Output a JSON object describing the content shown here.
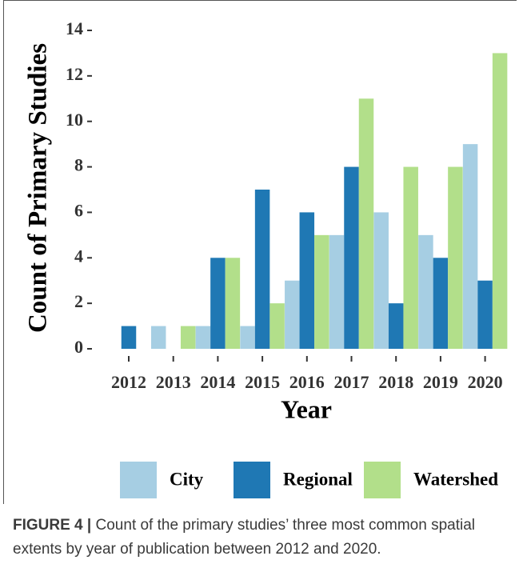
{
  "chart_data": {
    "type": "bar",
    "categories": [
      "2012",
      "2013",
      "2014",
      "2015",
      "2016",
      "2017",
      "2018",
      "2019",
      "2020"
    ],
    "series": [
      {
        "name": "City",
        "color": "#a6cee3",
        "values": [
          0,
          1,
          1,
          1,
          3,
          5,
          6,
          5,
          9
        ]
      },
      {
        "name": "Regional",
        "color": "#1f78b4",
        "values": [
          1,
          0,
          4,
          7,
          6,
          8,
          2,
          4,
          3
        ]
      },
      {
        "name": "Watershed",
        "color": "#b2df8a",
        "values": [
          0,
          1,
          4,
          2,
          5,
          11,
          8,
          8,
          13
        ]
      }
    ],
    "x_label": "Year",
    "y_label": "Count of Primary Studies",
    "ylim": [
      0,
      14
    ],
    "yticks": [
      0,
      2,
      4,
      6,
      8,
      10,
      12,
      14
    ],
    "legend": "bottom"
  },
  "caption": {
    "label": "FIGURE 4 |",
    "text": "Count of the primary studies’ three most common spatial extents by year of publication between 2012 and 2020."
  }
}
